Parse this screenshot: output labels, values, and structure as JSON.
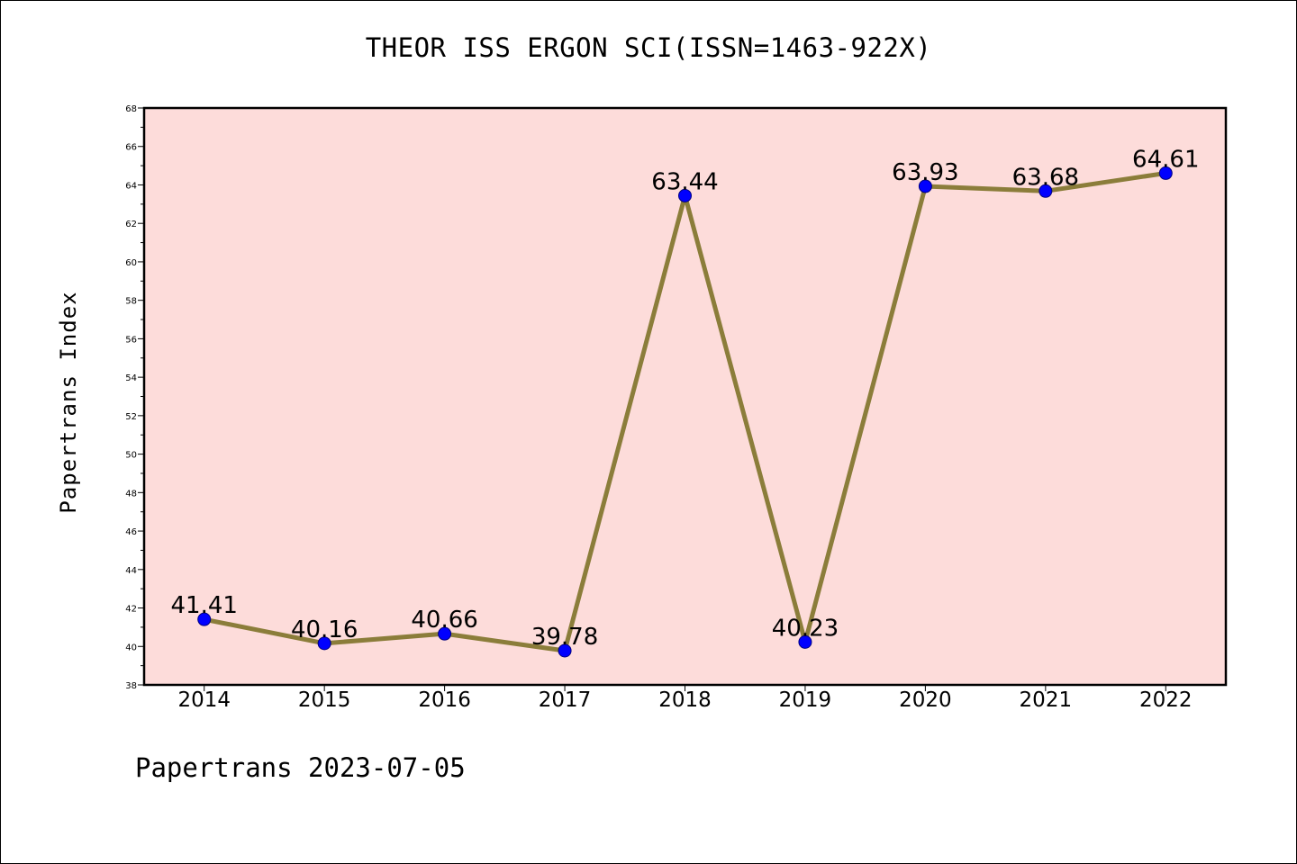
{
  "page": {
    "title": "THEOR ISS ERGON SCI(ISSN=1463-922X)",
    "footer": "Papertrans 2023-07-05"
  },
  "chart_data": {
    "type": "line",
    "title": "THEOR ISS ERGON SCI(ISSN=1463-922X)",
    "xlabel": "",
    "ylabel": "Papertrans Index",
    "categories": [
      "2014",
      "2015",
      "2016",
      "2017",
      "2018",
      "2019",
      "2020",
      "2021",
      "2022"
    ],
    "series": [
      {
        "values": [
          41.41,
          40.16,
          40.66,
          39.78,
          63.44,
          40.23,
          63.93,
          63.68,
          64.61
        ],
        "labels": [
          "41.41",
          "40.16",
          "40.66",
          "39.78",
          "63.44",
          "40.23",
          "63.93",
          "63.68",
          "64.61"
        ]
      }
    ],
    "ylim": [
      38,
      68
    ],
    "yticks": [
      38,
      40,
      42,
      44,
      46,
      48,
      50,
      52,
      54,
      56,
      58,
      60,
      62,
      64,
      66,
      68
    ],
    "grid": false,
    "legend": "none",
    "colors": {
      "plot_background": "#fddcda",
      "line": "#8b7d3a",
      "marker": "#0000ff",
      "marker_edge": "#000080"
    }
  }
}
